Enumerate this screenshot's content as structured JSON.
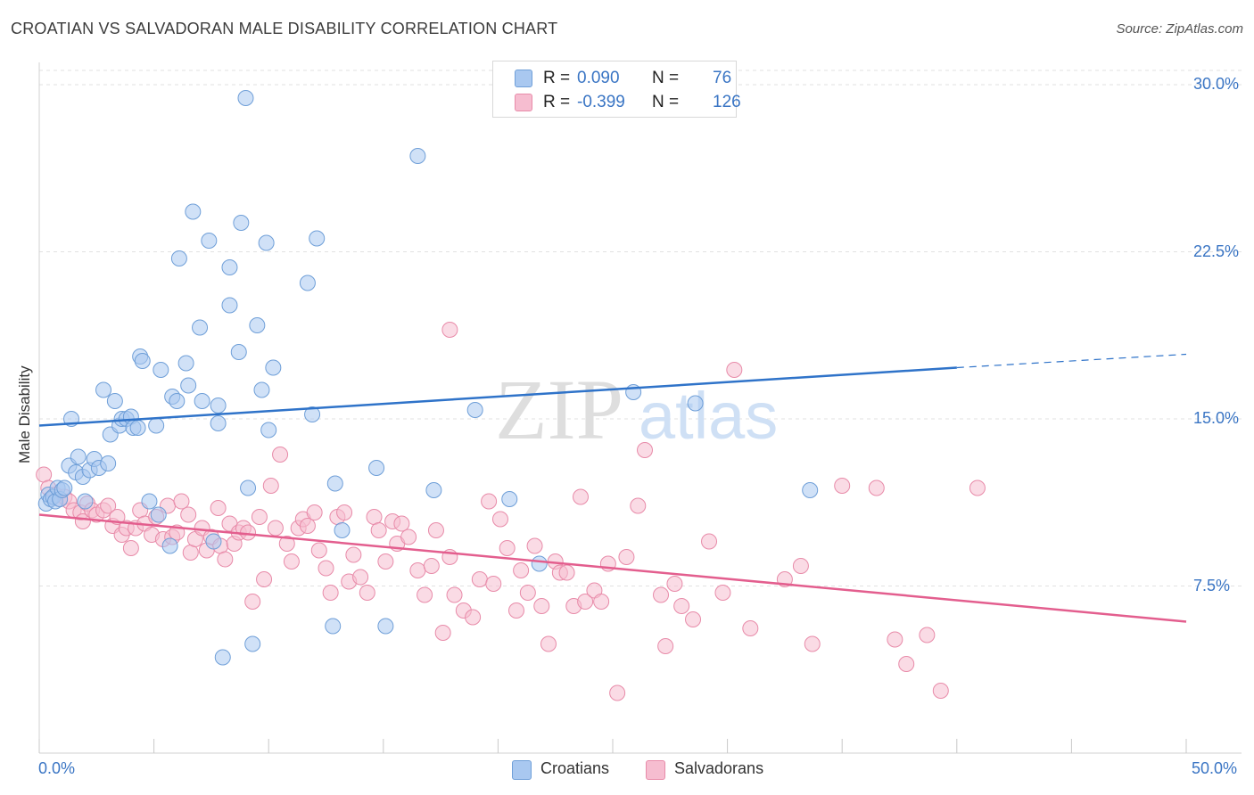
{
  "title": "CROATIAN VS SALVADORAN MALE DISABILITY CORRELATION CHART",
  "source": "Source: ZipAtlas.com",
  "watermark": {
    "zip": "ZIP",
    "atlas": "atlas"
  },
  "colors": {
    "croatians_fill": "#a9c8f0",
    "croatians_stroke": "#6f9fd8",
    "croatians_line": "#2f73c9",
    "salvadorans_fill": "#f6bdd0",
    "salvadorans_stroke": "#e88ba9",
    "salvadorans_line": "#e35e8e",
    "accent_text": "#3a75c4"
  },
  "legend": {
    "rows": [
      {
        "r_label": "R =",
        "r_value": "0.090",
        "n_label": "N =",
        "n_value": "76"
      },
      {
        "r_label": "R =",
        "r_value": "-0.399",
        "n_label": "N =",
        "n_value": "126"
      }
    ]
  },
  "bottom_legend": {
    "croatians": "Croatians",
    "salvadorans": "Salvadorans"
  },
  "chart_data": {
    "type": "scatter",
    "title": "CROATIAN VS SALVADORAN MALE DISABILITY CORRELATION CHART",
    "xlabel": "",
    "ylabel": "Male Disability",
    "xlim": [
      0,
      50
    ],
    "ylim": [
      0,
      31
    ],
    "x_tick_labels": {
      "left": "0.0%",
      "right": "50.0%"
    },
    "y_ticks": [
      {
        "value": 7.5,
        "label": "7.5%"
      },
      {
        "value": 15.0,
        "label": "15.0%"
      },
      {
        "value": 22.5,
        "label": "22.5%"
      },
      {
        "value": 30.0,
        "label": "30.0%"
      }
    ],
    "grid": "horizontal dashed",
    "legend_position": "top-center",
    "series": [
      {
        "name": "Croatians",
        "r": 0.09,
        "n": 76,
        "trend": {
          "x_start": 0,
          "y_start": 14.7,
          "x_solid_end": 40,
          "y_solid_end": 17.3,
          "x_end": 50,
          "y_end": 17.9
        },
        "points": [
          [
            0.3,
            11.2
          ],
          [
            0.4,
            11.6
          ],
          [
            0.5,
            11.4
          ],
          [
            0.6,
            11.5
          ],
          [
            0.7,
            11.3
          ],
          [
            0.8,
            11.9
          ],
          [
            0.9,
            11.4
          ],
          [
            1.0,
            11.8
          ],
          [
            1.1,
            11.9
          ],
          [
            1.3,
            12.9
          ],
          [
            1.4,
            15.0
          ],
          [
            1.6,
            12.6
          ],
          [
            1.7,
            13.3
          ],
          [
            1.9,
            12.4
          ],
          [
            2.0,
            11.3
          ],
          [
            2.2,
            12.7
          ],
          [
            2.4,
            13.2
          ],
          [
            2.6,
            12.8
          ],
          [
            2.8,
            16.3
          ],
          [
            3.0,
            13.0
          ],
          [
            3.1,
            14.3
          ],
          [
            3.3,
            15.8
          ],
          [
            3.5,
            14.7
          ],
          [
            3.6,
            15.0
          ],
          [
            3.8,
            15.0
          ],
          [
            4.0,
            15.1
          ],
          [
            4.1,
            14.6
          ],
          [
            4.3,
            14.6
          ],
          [
            4.4,
            17.8
          ],
          [
            4.5,
            17.6
          ],
          [
            4.8,
            11.3
          ],
          [
            5.1,
            14.7
          ],
          [
            5.2,
            10.7
          ],
          [
            5.3,
            17.2
          ],
          [
            5.7,
            9.3
          ],
          [
            5.8,
            16.0
          ],
          [
            6.0,
            15.8
          ],
          [
            6.1,
            22.2
          ],
          [
            6.4,
            17.5
          ],
          [
            6.5,
            16.5
          ],
          [
            6.7,
            24.3
          ],
          [
            7.0,
            19.1
          ],
          [
            7.1,
            15.8
          ],
          [
            7.4,
            23.0
          ],
          [
            7.6,
            9.5
          ],
          [
            7.8,
            15.6
          ],
          [
            7.8,
            14.8
          ],
          [
            8.0,
            4.3
          ],
          [
            8.3,
            20.1
          ],
          [
            8.3,
            21.8
          ],
          [
            8.7,
            18.0
          ],
          [
            8.8,
            23.8
          ],
          [
            9.0,
            29.4
          ],
          [
            9.1,
            11.9
          ],
          [
            9.3,
            4.9
          ],
          [
            9.5,
            19.2
          ],
          [
            9.7,
            16.3
          ],
          [
            9.9,
            22.9
          ],
          [
            10.0,
            14.5
          ],
          [
            10.2,
            17.3
          ],
          [
            11.7,
            21.1
          ],
          [
            11.9,
            15.2
          ],
          [
            12.1,
            23.1
          ],
          [
            12.9,
            12.1
          ],
          [
            13.2,
            10.0
          ],
          [
            14.7,
            12.8
          ],
          [
            15.1,
            5.7
          ],
          [
            16.5,
            26.8
          ],
          [
            17.2,
            11.8
          ],
          [
            19.0,
            15.4
          ],
          [
            20.5,
            11.4
          ],
          [
            21.8,
            8.5
          ],
          [
            25.9,
            16.2
          ],
          [
            28.6,
            15.7
          ],
          [
            33.6,
            11.8
          ],
          [
            12.8,
            5.7
          ]
        ]
      },
      {
        "name": "Salvadorans",
        "r": -0.399,
        "n": 126,
        "trend": {
          "x_start": 0,
          "y_start": 10.7,
          "x_end": 50,
          "y_end": 5.9
        },
        "points": [
          [
            0.2,
            12.5
          ],
          [
            0.4,
            11.9
          ],
          [
            0.7,
            11.6
          ],
          [
            0.9,
            11.4
          ],
          [
            1.1,
            11.5
          ],
          [
            1.3,
            11.3
          ],
          [
            1.5,
            10.9
          ],
          [
            1.8,
            10.8
          ],
          [
            1.9,
            10.4
          ],
          [
            2.1,
            11.2
          ],
          [
            2.3,
            10.9
          ],
          [
            2.5,
            10.7
          ],
          [
            2.8,
            10.9
          ],
          [
            3.0,
            11.1
          ],
          [
            3.2,
            10.2
          ],
          [
            3.4,
            10.6
          ],
          [
            3.6,
            9.8
          ],
          [
            3.8,
            10.1
          ],
          [
            4.0,
            9.2
          ],
          [
            4.2,
            10.1
          ],
          [
            4.4,
            10.9
          ],
          [
            4.6,
            10.3
          ],
          [
            4.9,
            9.8
          ],
          [
            5.1,
            10.6
          ],
          [
            5.4,
            9.6
          ],
          [
            5.6,
            11.1
          ],
          [
            5.8,
            9.7
          ],
          [
            6.0,
            9.9
          ],
          [
            6.2,
            11.3
          ],
          [
            6.5,
            10.7
          ],
          [
            6.6,
            9.0
          ],
          [
            6.8,
            9.6
          ],
          [
            7.1,
            10.1
          ],
          [
            7.3,
            9.1
          ],
          [
            7.5,
            9.7
          ],
          [
            7.8,
            11.0
          ],
          [
            7.9,
            9.3
          ],
          [
            8.1,
            8.7
          ],
          [
            8.3,
            10.3
          ],
          [
            8.5,
            9.4
          ],
          [
            8.7,
            9.9
          ],
          [
            8.9,
            10.1
          ],
          [
            9.1,
            9.9
          ],
          [
            9.3,
            6.8
          ],
          [
            9.6,
            10.6
          ],
          [
            9.8,
            7.8
          ],
          [
            10.1,
            12.0
          ],
          [
            10.3,
            10.1
          ],
          [
            10.5,
            13.4
          ],
          [
            10.8,
            9.4
          ],
          [
            11.0,
            8.6
          ],
          [
            11.3,
            10.1
          ],
          [
            11.5,
            10.5
          ],
          [
            11.7,
            10.2
          ],
          [
            12.0,
            10.8
          ],
          [
            12.2,
            9.1
          ],
          [
            12.5,
            8.3
          ],
          [
            12.7,
            7.2
          ],
          [
            13.0,
            10.6
          ],
          [
            13.3,
            10.8
          ],
          [
            13.5,
            7.7
          ],
          [
            13.7,
            8.9
          ],
          [
            14.0,
            7.9
          ],
          [
            14.3,
            7.2
          ],
          [
            14.6,
            10.6
          ],
          [
            14.8,
            10.0
          ],
          [
            15.1,
            8.6
          ],
          [
            15.4,
            10.4
          ],
          [
            15.6,
            9.4
          ],
          [
            15.8,
            10.3
          ],
          [
            16.1,
            9.7
          ],
          [
            16.5,
            8.2
          ],
          [
            16.8,
            7.1
          ],
          [
            17.1,
            8.4
          ],
          [
            17.3,
            10.0
          ],
          [
            17.6,
            5.4
          ],
          [
            17.9,
            8.8
          ],
          [
            18.1,
            7.1
          ],
          [
            18.5,
            6.4
          ],
          [
            18.9,
            6.1
          ],
          [
            19.2,
            7.8
          ],
          [
            19.6,
            11.3
          ],
          [
            19.8,
            7.6
          ],
          [
            20.1,
            10.5
          ],
          [
            20.4,
            9.2
          ],
          [
            20.8,
            6.4
          ],
          [
            21.0,
            8.2
          ],
          [
            21.3,
            7.2
          ],
          [
            21.6,
            9.3
          ],
          [
            21.9,
            6.6
          ],
          [
            22.2,
            4.9
          ],
          [
            22.5,
            8.6
          ],
          [
            22.7,
            8.1
          ],
          [
            23.0,
            8.1
          ],
          [
            23.3,
            6.6
          ],
          [
            23.6,
            11.5
          ],
          [
            23.8,
            6.8
          ],
          [
            24.2,
            7.3
          ],
          [
            24.5,
            6.8
          ],
          [
            24.8,
            8.5
          ],
          [
            25.2,
            2.7
          ],
          [
            25.6,
            8.8
          ],
          [
            26.1,
            11.1
          ],
          [
            26.4,
            13.6
          ],
          [
            27.1,
            7.1
          ],
          [
            27.3,
            4.8
          ],
          [
            27.7,
            7.6
          ],
          [
            28.0,
            6.6
          ],
          [
            28.5,
            6.0
          ],
          [
            29.2,
            9.5
          ],
          [
            29.8,
            7.2
          ],
          [
            30.3,
            17.2
          ],
          [
            31.0,
            5.6
          ],
          [
            32.5,
            7.8
          ],
          [
            33.2,
            8.4
          ],
          [
            33.7,
            4.9
          ],
          [
            35.0,
            12.0
          ],
          [
            36.5,
            11.9
          ],
          [
            37.3,
            5.1
          ],
          [
            37.8,
            4.0
          ],
          [
            38.7,
            5.3
          ],
          [
            39.3,
            2.8
          ],
          [
            40.9,
            11.9
          ],
          [
            17.9,
            19.0
          ]
        ]
      }
    ]
  }
}
